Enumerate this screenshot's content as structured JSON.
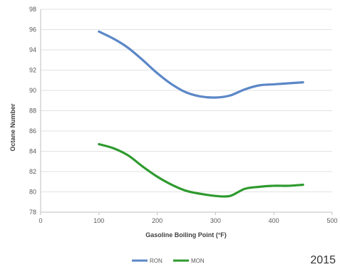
{
  "chart_data": {
    "type": "line",
    "title": "",
    "xlabel": "Gasoline Boiling Point (°F)",
    "ylabel": "Octane Number",
    "xlim": [
      0,
      500
    ],
    "ylim": [
      78,
      98
    ],
    "x_ticks": [
      0,
      100,
      200,
      300,
      400,
      500
    ],
    "y_ticks": [
      78,
      80,
      82,
      84,
      86,
      88,
      90,
      92,
      94,
      96,
      98
    ],
    "grid": "horizontal",
    "legend_position": "bottom",
    "series": [
      {
        "name": "RON",
        "color": "#5b87c7",
        "points": [
          [
            100,
            95.8
          ],
          [
            125,
            95.1
          ],
          [
            150,
            94.2
          ],
          [
            175,
            93.0
          ],
          [
            200,
            91.7
          ],
          [
            225,
            90.6
          ],
          [
            250,
            89.8
          ],
          [
            275,
            89.4
          ],
          [
            300,
            89.3
          ],
          [
            325,
            89.5
          ],
          [
            350,
            90.1
          ],
          [
            375,
            90.5
          ],
          [
            400,
            90.6
          ],
          [
            425,
            90.7
          ],
          [
            450,
            90.8
          ]
        ]
      },
      {
        "name": "MON",
        "color": "#2e9a2e",
        "points": [
          [
            100,
            84.7
          ],
          [
            125,
            84.3
          ],
          [
            150,
            83.6
          ],
          [
            175,
            82.5
          ],
          [
            200,
            81.5
          ],
          [
            225,
            80.7
          ],
          [
            250,
            80.1
          ],
          [
            275,
            79.8
          ],
          [
            300,
            79.6
          ],
          [
            325,
            79.6
          ],
          [
            350,
            80.3
          ],
          [
            375,
            80.5
          ],
          [
            400,
            80.6
          ],
          [
            425,
            80.6
          ],
          [
            450,
            80.7
          ]
        ]
      }
    ]
  },
  "footer": {
    "year": "2015"
  }
}
